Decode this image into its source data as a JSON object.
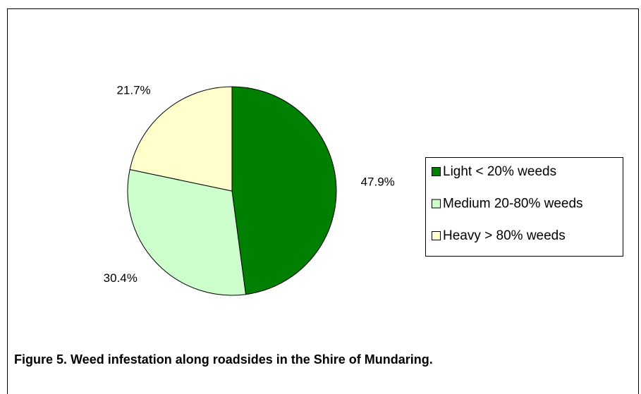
{
  "chart_data": {
    "type": "pie",
    "title": "Figure 5. Weed infestation along roadsides in the Shire of Mundaring.",
    "categories": [
      "Light < 20% weeds",
      "Medium 20-80% weeds",
      "Heavy > 80% weeds"
    ],
    "values": [
      47.9,
      30.4,
      21.7
    ],
    "value_labels": [
      "47.9%",
      "30.4%",
      "21.7%"
    ],
    "colors": [
      "#008000",
      "#ccffcc",
      "#ffffcc"
    ],
    "legend": "right"
  }
}
